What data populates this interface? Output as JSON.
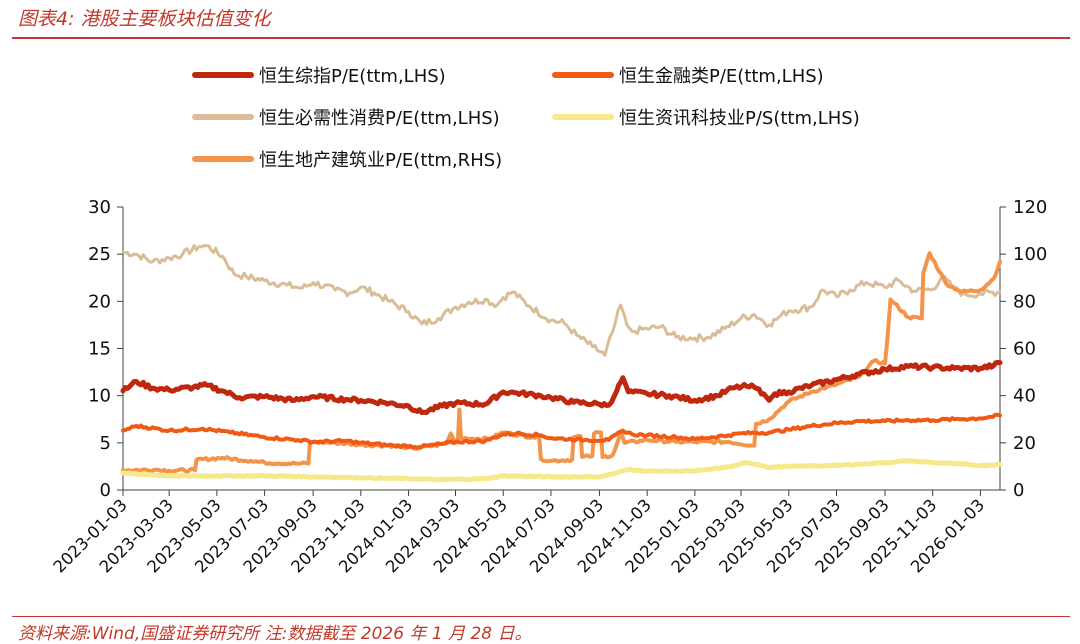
{
  "figure": {
    "title": "图表4:  港股主要板块估值变化",
    "source": "资料来源:Wind,国盛证券研究所   注:数据截至 2026 年 1 月 28 日。"
  },
  "chart_data": {
    "type": "line",
    "title": "港股主要板块估值变化",
    "xlabel": "",
    "ylabel_left": "",
    "ylabel_right": "",
    "x_range": [
      "2023-01-03",
      "2026-01-28"
    ],
    "x_ticks": [
      "2023-01-03",
      "2023-03-03",
      "2023-05-03",
      "2023-07-03",
      "2023-09-03",
      "2023-11-03",
      "2024-01-03",
      "2024-03-03",
      "2024-05-03",
      "2024-07-03",
      "2024-09-03",
      "2024-11-03",
      "2025-01-03",
      "2025-03-03",
      "2025-05-03",
      "2025-07-03",
      "2025-09-03",
      "2025-11-03",
      "2026-01-03"
    ],
    "y_left": {
      "min": 0,
      "max": 30,
      "ticks": [
        "0",
        "5",
        "10",
        "15",
        "20",
        "25",
        "30"
      ]
    },
    "y_right": {
      "min": 0,
      "max": 120,
      "ticks": [
        "0",
        "20",
        "40",
        "60",
        "80",
        "100",
        "120"
      ]
    },
    "legend_position": "top",
    "series": [
      {
        "name": "恒生综指P/E(ttm,LHS)",
        "axis": "left",
        "color": "#c0270f",
        "width": 5,
        "points": [
          [
            "2023-01-03",
            10.5
          ],
          [
            "2023-01-20",
            11.5
          ],
          [
            "2023-02-10",
            10.8
          ],
          [
            "2023-03-03",
            10.6
          ],
          [
            "2023-04-03",
            10.9
          ],
          [
            "2023-04-20",
            11.1
          ],
          [
            "2023-05-10",
            10.5
          ],
          [
            "2023-06-01",
            9.8
          ],
          [
            "2023-07-03",
            9.9
          ],
          [
            "2023-08-10",
            9.5
          ],
          [
            "2023-09-03",
            9.9
          ],
          [
            "2023-10-15",
            9.6
          ],
          [
            "2023-11-03",
            9.5
          ],
          [
            "2023-12-01",
            9.3
          ],
          [
            "2024-01-03",
            8.9
          ],
          [
            "2024-01-20",
            8.2
          ],
          [
            "2024-02-15",
            8.9
          ],
          [
            "2024-03-03",
            9.2
          ],
          [
            "2024-04-10",
            9.1
          ],
          [
            "2024-05-03",
            10.4
          ],
          [
            "2024-05-20",
            10.3
          ],
          [
            "2024-06-20",
            10.0
          ],
          [
            "2024-07-03",
            9.8
          ],
          [
            "2024-08-01",
            9.3
          ],
          [
            "2024-09-03",
            9.1
          ],
          [
            "2024-09-15",
            9.0
          ],
          [
            "2024-09-25",
            10.5
          ],
          [
            "2024-10-03",
            11.9
          ],
          [
            "2024-10-10",
            10.4
          ],
          [
            "2024-11-03",
            10.2
          ],
          [
            "2024-12-01",
            10.0
          ],
          [
            "2025-01-03",
            9.5
          ],
          [
            "2025-02-01",
            10.0
          ],
          [
            "2025-02-20",
            10.8
          ],
          [
            "2025-03-10",
            11.0
          ],
          [
            "2025-03-20",
            10.9
          ],
          [
            "2025-04-01",
            10.2
          ],
          [
            "2025-04-08",
            9.5
          ],
          [
            "2025-04-15",
            10.2
          ],
          [
            "2025-05-03",
            10.4
          ],
          [
            "2025-06-01",
            11.1
          ],
          [
            "2025-07-03",
            11.7
          ],
          [
            "2025-08-01",
            12.3
          ],
          [
            "2025-09-03",
            12.8
          ],
          [
            "2025-10-03",
            13.1
          ],
          [
            "2025-11-03",
            13.0
          ],
          [
            "2025-12-01",
            12.9
          ],
          [
            "2026-01-03",
            12.9
          ],
          [
            "2026-01-20",
            13.2
          ],
          [
            "2026-01-28",
            13.5
          ]
        ]
      },
      {
        "name": "恒生金融类P/E(ttm,LHS)",
        "axis": "left",
        "color": "#f05a14",
        "width": 4,
        "points": [
          [
            "2023-01-03",
            6.3
          ],
          [
            "2023-01-20",
            6.8
          ],
          [
            "2023-03-03",
            6.3
          ],
          [
            "2023-04-15",
            6.5
          ],
          [
            "2023-05-20",
            6.1
          ],
          [
            "2023-07-03",
            5.6
          ],
          [
            "2023-08-15",
            5.3
          ],
          [
            "2023-09-03",
            5.1
          ],
          [
            "2023-10-15",
            5.2
          ],
          [
            "2023-11-03",
            5.0
          ],
          [
            "2023-12-15",
            4.7
          ],
          [
            "2024-01-20",
            4.6
          ],
          [
            "2024-02-15",
            4.9
          ],
          [
            "2024-03-03",
            5.1
          ],
          [
            "2024-04-10",
            5.2
          ],
          [
            "2024-05-03",
            5.9
          ],
          [
            "2024-05-20",
            6.0
          ],
          [
            "2024-06-20",
            5.8
          ],
          [
            "2024-07-03",
            5.5
          ],
          [
            "2024-08-15",
            5.3
          ],
          [
            "2024-09-15",
            5.3
          ],
          [
            "2024-10-03",
            6.3
          ],
          [
            "2024-10-15",
            5.9
          ],
          [
            "2024-11-03",
            5.8
          ],
          [
            "2024-12-10",
            5.6
          ],
          [
            "2025-01-03",
            5.4
          ],
          [
            "2025-02-15",
            5.8
          ],
          [
            "2025-03-03",
            6.0
          ],
          [
            "2025-04-08",
            6.1
          ],
          [
            "2025-05-03",
            6.4
          ],
          [
            "2025-06-01",
            6.8
          ],
          [
            "2025-07-03",
            7.1
          ],
          [
            "2025-08-01",
            7.3
          ],
          [
            "2025-09-03",
            7.3
          ],
          [
            "2025-10-03",
            7.4
          ],
          [
            "2025-11-03",
            7.4
          ],
          [
            "2025-12-01",
            7.5
          ],
          [
            "2026-01-03",
            7.6
          ],
          [
            "2026-01-28",
            7.9
          ]
        ]
      },
      {
        "name": "恒生必需性消费P/E(ttm,LHS)",
        "axis": "left",
        "color": "#d9bd98",
        "width": 3,
        "points": [
          [
            "2023-01-03",
            25.2
          ],
          [
            "2023-01-20",
            25.0
          ],
          [
            "2023-02-10",
            24.2
          ],
          [
            "2023-03-03",
            24.6
          ],
          [
            "2023-03-20",
            25.0
          ],
          [
            "2023-04-10",
            25.8
          ],
          [
            "2023-04-20",
            25.9
          ],
          [
            "2023-05-10",
            24.8
          ],
          [
            "2023-05-25",
            22.9
          ],
          [
            "2023-06-10",
            22.6
          ],
          [
            "2023-07-03",
            22.2
          ],
          [
            "2023-08-01",
            21.7
          ],
          [
            "2023-08-20",
            21.4
          ],
          [
            "2023-09-03",
            22.0
          ],
          [
            "2023-10-01",
            21.2
          ],
          [
            "2023-10-20",
            20.9
          ],
          [
            "2023-11-03",
            21.5
          ],
          [
            "2023-11-20",
            20.9
          ],
          [
            "2023-12-10",
            20.0
          ],
          [
            "2024-01-03",
            18.9
          ],
          [
            "2024-01-20",
            17.6
          ],
          [
            "2024-02-10",
            18.2
          ],
          [
            "2024-03-03",
            19.4
          ],
          [
            "2024-03-20",
            19.9
          ],
          [
            "2024-04-10",
            20.2
          ],
          [
            "2024-04-25",
            19.6
          ],
          [
            "2024-05-03",
            20.4
          ],
          [
            "2024-05-15",
            21.0
          ],
          [
            "2024-06-05",
            19.5
          ],
          [
            "2024-07-03",
            18.0
          ],
          [
            "2024-07-20",
            17.7
          ],
          [
            "2024-08-05",
            16.4
          ],
          [
            "2024-08-25",
            15.2
          ],
          [
            "2024-09-10",
            14.3
          ],
          [
            "2024-09-20",
            16.8
          ],
          [
            "2024-09-30",
            19.6
          ],
          [
            "2024-10-08",
            17.5
          ],
          [
            "2024-10-15",
            16.8
          ],
          [
            "2024-11-03",
            17.1
          ],
          [
            "2024-11-20",
            17.3
          ],
          [
            "2024-12-10",
            16.2
          ],
          [
            "2025-01-03",
            16.1
          ],
          [
            "2025-01-20",
            16.2
          ],
          [
            "2025-02-10",
            17.1
          ],
          [
            "2025-03-03",
            18.2
          ],
          [
            "2025-03-20",
            18.6
          ],
          [
            "2025-04-08",
            17.5
          ],
          [
            "2025-04-20",
            18.3
          ],
          [
            "2025-05-03",
            19.0
          ],
          [
            "2025-06-01",
            19.4
          ],
          [
            "2025-06-15",
            21.2
          ],
          [
            "2025-07-03",
            20.5
          ],
          [
            "2025-07-20",
            21.2
          ],
          [
            "2025-08-10",
            22.0
          ],
          [
            "2025-09-03",
            21.5
          ],
          [
            "2025-09-20",
            22.2
          ],
          [
            "2025-10-10",
            21.1
          ],
          [
            "2025-11-03",
            21.3
          ],
          [
            "2025-11-15",
            22.6
          ],
          [
            "2025-12-01",
            21.3
          ],
          [
            "2025-12-15",
            20.7
          ],
          [
            "2026-01-03",
            20.8
          ],
          [
            "2026-01-28",
            21.0
          ]
        ]
      },
      {
        "name": "恒生资讯科技业P/S(ttm,LHS)",
        "axis": "left",
        "color": "#f5e98a",
        "width": 5,
        "points": [
          [
            "2023-01-03",
            1.8
          ],
          [
            "2023-02-10",
            1.6
          ],
          [
            "2023-03-03",
            1.5
          ],
          [
            "2023-05-03",
            1.5
          ],
          [
            "2023-07-03",
            1.5
          ],
          [
            "2023-09-03",
            1.4
          ],
          [
            "2023-11-03",
            1.3
          ],
          [
            "2024-01-03",
            1.2
          ],
          [
            "2024-02-15",
            1.1
          ],
          [
            "2024-04-10",
            1.2
          ],
          [
            "2024-05-03",
            1.5
          ],
          [
            "2024-07-03",
            1.4
          ],
          [
            "2024-09-03",
            1.4
          ],
          [
            "2024-09-25",
            1.8
          ],
          [
            "2024-10-10",
            2.2
          ],
          [
            "2024-11-03",
            2.0
          ],
          [
            "2025-01-03",
            2.0
          ],
          [
            "2025-02-20",
            2.5
          ],
          [
            "2025-03-10",
            2.9
          ],
          [
            "2025-03-25",
            2.7
          ],
          [
            "2025-04-08",
            2.4
          ],
          [
            "2025-05-03",
            2.5
          ],
          [
            "2025-07-03",
            2.6
          ],
          [
            "2025-09-03",
            2.9
          ],
          [
            "2025-10-03",
            3.1
          ],
          [
            "2025-11-03",
            2.9
          ],
          [
            "2025-12-01",
            2.8
          ],
          [
            "2026-01-03",
            2.6
          ],
          [
            "2026-01-28",
            2.7
          ]
        ]
      },
      {
        "name": "恒生地产建筑业P/E(ttm,RHS)",
        "axis": "right",
        "color": "#f4944a",
        "width": 4,
        "points": [
          [
            "2023-01-03",
            8.4
          ],
          [
            "2023-02-15",
            8.6
          ],
          [
            "2023-03-03",
            8.2
          ],
          [
            "2023-04-05",
            8.4
          ],
          [
            "2023-04-07",
            12.8
          ],
          [
            "2023-05-10",
            13.6
          ],
          [
            "2023-06-15",
            12.4
          ],
          [
            "2023-07-03",
            11.6
          ],
          [
            "2023-08-15",
            11.2
          ],
          [
            "2023-08-28",
            11.2
          ],
          [
            "2023-08-30",
            20.4
          ],
          [
            "2023-10-01",
            20.0
          ],
          [
            "2023-11-03",
            19.2
          ],
          [
            "2023-12-15",
            18.8
          ],
          [
            "2024-01-10",
            17.6
          ],
          [
            "2024-02-20",
            19.6
          ],
          [
            "2024-02-26",
            24.0
          ],
          [
            "2024-03-03",
            20.0
          ],
          [
            "2024-03-06",
            20.4
          ],
          [
            "2024-03-08",
            34.0
          ],
          [
            "2024-03-10",
            22.0
          ],
          [
            "2024-04-15",
            21.6
          ],
          [
            "2024-05-03",
            24.4
          ],
          [
            "2024-06-10",
            22.4
          ],
          [
            "2024-06-18",
            22.4
          ],
          [
            "2024-06-20",
            13.2
          ],
          [
            "2024-07-03",
            12.4
          ],
          [
            "2024-07-30",
            12.8
          ],
          [
            "2024-08-01",
            22.4
          ],
          [
            "2024-08-10",
            22.8
          ],
          [
            "2024-08-12",
            14.0
          ],
          [
            "2024-08-25",
            14.4
          ],
          [
            "2024-08-27",
            24.0
          ],
          [
            "2024-09-05",
            24.4
          ],
          [
            "2024-09-07",
            14.0
          ],
          [
            "2024-09-20",
            14.8
          ],
          [
            "2024-10-01",
            24.4
          ],
          [
            "2024-10-05",
            20.0
          ],
          [
            "2024-11-03",
            21.2
          ],
          [
            "2024-12-10",
            20.4
          ],
          [
            "2025-01-03",
            20.4
          ],
          [
            "2025-02-15",
            20.4
          ],
          [
            "2025-03-20",
            18.8
          ],
          [
            "2025-03-22",
            28.0
          ],
          [
            "2025-04-08",
            30.0
          ],
          [
            "2025-05-03",
            37.6
          ],
          [
            "2025-06-01",
            41.6
          ],
          [
            "2025-07-03",
            44.8
          ],
          [
            "2025-08-01",
            48.0
          ],
          [
            "2025-08-20",
            54.8
          ],
          [
            "2025-09-03",
            53.6
          ],
          [
            "2025-09-06",
            63.6
          ],
          [
            "2025-09-10",
            80.8
          ],
          [
            "2025-10-03",
            73.2
          ],
          [
            "2025-10-20",
            72.8
          ],
          [
            "2025-10-22",
            92.0
          ],
          [
            "2025-10-30",
            100.4
          ],
          [
            "2025-11-20",
            87.6
          ],
          [
            "2025-12-10",
            84.0
          ],
          [
            "2026-01-03",
            84.8
          ],
          [
            "2026-01-20",
            89.6
          ],
          [
            "2026-01-28",
            96.8
          ]
        ]
      }
    ]
  }
}
